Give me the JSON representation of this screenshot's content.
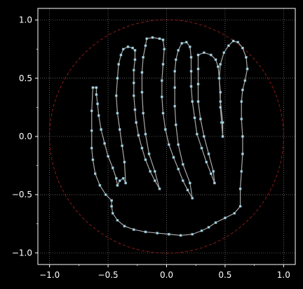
{
  "chart_data": {
    "type": "scatter",
    "title": "",
    "xlabel": "",
    "ylabel": "",
    "xlim": [
      -1.1,
      1.1
    ],
    "ylim": [
      -1.1,
      1.1
    ],
    "aspect": "equal",
    "grid": true,
    "legend": "none",
    "background": "#000000",
    "x_ticks": [
      -1.0,
      -0.5,
      0.0,
      0.5,
      1.0
    ],
    "y_ticks": [
      -1.0,
      -0.5,
      0.0,
      0.5,
      1.0
    ],
    "x_tick_labels": [
      "−1.0",
      "−0.5",
      "0.0",
      "0.5",
      "1.0"
    ],
    "y_tick_labels": [
      "−1.0",
      "−0.5",
      "0.0",
      "0.5",
      "1.0"
    ],
    "colors": {
      "axes": "#ffffff",
      "grid": "#9a9a9a",
      "circle": "#8b1a1a",
      "line": "#a9a9a9",
      "marker": "#add8e6"
    },
    "circle": {
      "center": [
        0,
        0
      ],
      "radius": 1.0,
      "style": "dashed"
    },
    "series": [
      {
        "style": "line-with-square-markers",
        "points": [
          [
            0.02,
            -0.84
          ],
          [
            -0.08,
            -0.83
          ],
          [
            -0.18,
            -0.82
          ],
          [
            -0.28,
            -0.8
          ],
          [
            -0.36,
            -0.77
          ],
          [
            -0.42,
            -0.72
          ],
          [
            -0.46,
            -0.66
          ],
          [
            -0.47,
            -0.6
          ],
          [
            -0.47,
            -0.55
          ],
          [
            -0.52,
            -0.5
          ],
          [
            -0.57,
            -0.42
          ],
          [
            -0.61,
            -0.32
          ],
          [
            -0.63,
            -0.2
          ],
          [
            -0.64,
            -0.1
          ],
          [
            -0.64,
            0.05
          ],
          [
            -0.64,
            0.22
          ],
          [
            -0.63,
            0.42
          ],
          [
            -0.6,
            0.42
          ],
          [
            -0.6,
            0.36
          ],
          [
            -0.59,
            0.28
          ],
          [
            -0.58,
            0.18
          ],
          [
            -0.56,
            0.06
          ],
          [
            -0.53,
            -0.06
          ],
          [
            -0.5,
            -0.17
          ],
          [
            -0.46,
            -0.27
          ],
          [
            -0.43,
            -0.36
          ],
          [
            -0.42,
            -0.42
          ],
          [
            -0.4,
            -0.38
          ],
          [
            -0.37,
            -0.36
          ],
          [
            -0.35,
            -0.4
          ],
          [
            -0.36,
            -0.22
          ],
          [
            -0.38,
            -0.08
          ],
          [
            -0.4,
            0.06
          ],
          [
            -0.42,
            0.2
          ],
          [
            -0.43,
            0.35
          ],
          [
            -0.42,
            0.5
          ],
          [
            -0.41,
            0.62
          ],
          [
            -0.39,
            0.7
          ],
          [
            -0.37,
            0.75
          ],
          [
            -0.33,
            0.77
          ],
          [
            -0.29,
            0.76
          ],
          [
            -0.27,
            0.74
          ],
          [
            -0.27,
            0.66
          ],
          [
            -0.28,
            0.57
          ],
          [
            -0.28,
            0.46
          ],
          [
            -0.28,
            0.35
          ],
          [
            -0.27,
            0.23
          ],
          [
            -0.26,
            0.12
          ],
          [
            -0.24,
            0.01
          ],
          [
            -0.21,
            -0.1
          ],
          [
            -0.18,
            -0.2
          ],
          [
            -0.14,
            -0.3
          ],
          [
            -0.1,
            -0.38
          ],
          [
            -0.06,
            -0.45
          ],
          [
            -0.1,
            -0.3
          ],
          [
            -0.15,
            -0.15
          ],
          [
            -0.18,
            0.02
          ],
          [
            -0.2,
            0.2
          ],
          [
            -0.21,
            0.38
          ],
          [
            -0.21,
            0.55
          ],
          [
            -0.2,
            0.68
          ],
          [
            -0.18,
            0.78
          ],
          [
            -0.17,
            0.84
          ],
          [
            -0.12,
            0.85
          ],
          [
            -0.06,
            0.84
          ],
          [
            -0.03,
            0.83
          ],
          [
            -0.02,
            0.75
          ],
          [
            -0.03,
            0.62
          ],
          [
            -0.04,
            0.48
          ],
          [
            -0.04,
            0.34
          ],
          [
            -0.03,
            0.2
          ],
          [
            -0.01,
            0.06
          ],
          [
            0.02,
            -0.07
          ],
          [
            0.06,
            -0.18
          ],
          [
            0.1,
            -0.28
          ],
          [
            0.14,
            -0.38
          ],
          [
            0.18,
            -0.46
          ],
          [
            0.22,
            -0.53
          ],
          [
            0.2,
            -0.4
          ],
          [
            0.14,
            -0.24
          ],
          [
            0.1,
            -0.07
          ],
          [
            0.08,
            0.1
          ],
          [
            0.07,
            0.26
          ],
          [
            0.07,
            0.42
          ],
          [
            0.07,
            0.56
          ],
          [
            0.08,
            0.66
          ],
          [
            0.1,
            0.74
          ],
          [
            0.13,
            0.8
          ],
          [
            0.17,
            0.81
          ],
          [
            0.2,
            0.77
          ],
          [
            0.21,
            0.68
          ],
          [
            0.21,
            0.56
          ],
          [
            0.21,
            0.43
          ],
          [
            0.22,
            0.3
          ],
          [
            0.24,
            0.16
          ],
          [
            0.26,
            0.02
          ],
          [
            0.3,
            -0.1
          ],
          [
            0.34,
            -0.22
          ],
          [
            0.38,
            -0.32
          ],
          [
            0.41,
            -0.4
          ],
          [
            0.4,
            -0.3
          ],
          [
            0.36,
            -0.15
          ],
          [
            0.32,
            0.0
          ],
          [
            0.29,
            0.15
          ],
          [
            0.27,
            0.3
          ],
          [
            0.27,
            0.45
          ],
          [
            0.27,
            0.58
          ],
          [
            0.27,
            0.7
          ],
          [
            0.32,
            0.72
          ],
          [
            0.38,
            0.7
          ],
          [
            0.42,
            0.66
          ],
          [
            0.44,
            0.6
          ],
          [
            0.45,
            0.5
          ],
          [
            0.46,
            0.38
          ],
          [
            0.46,
            0.25
          ],
          [
            0.47,
            0.12
          ],
          [
            0.48,
            0.0
          ],
          [
            0.48,
            0.12
          ],
          [
            0.46,
            0.3
          ],
          [
            0.45,
            0.5
          ],
          [
            0.46,
            0.62
          ],
          [
            0.49,
            0.72
          ],
          [
            0.53,
            0.78
          ],
          [
            0.57,
            0.82
          ],
          [
            0.61,
            0.81
          ],
          [
            0.65,
            0.76
          ],
          [
            0.68,
            0.68
          ],
          [
            0.69,
            0.58
          ],
          [
            0.67,
            0.48
          ],
          [
            0.65,
            0.4
          ],
          [
            0.64,
            0.3
          ],
          [
            0.64,
            0.15
          ],
          [
            0.65,
            0.0
          ],
          [
            0.65,
            -0.15
          ],
          [
            0.64,
            -0.3
          ],
          [
            0.63,
            -0.45
          ],
          [
            0.63,
            -0.6
          ],
          [
            0.58,
            -0.66
          ],
          [
            0.5,
            -0.7
          ],
          [
            0.42,
            -0.74
          ],
          [
            0.36,
            -0.78
          ],
          [
            0.3,
            -0.81
          ],
          [
            0.22,
            -0.84
          ],
          [
            0.12,
            -0.85
          ],
          [
            0.02,
            -0.84
          ]
        ]
      }
    ]
  }
}
